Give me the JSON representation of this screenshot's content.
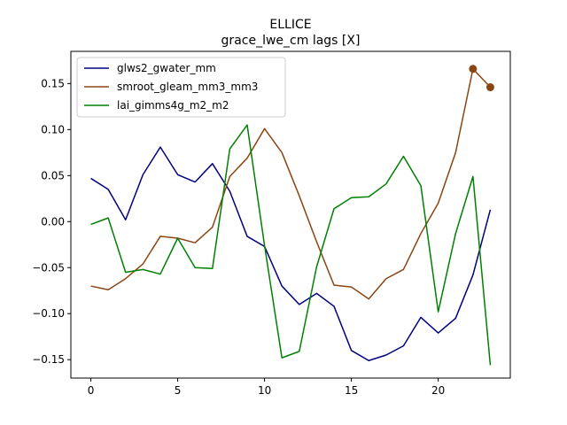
{
  "chart_data": {
    "type": "line",
    "title": "ELLICE",
    "subtitle": "grace_lwe_cm lags [X]",
    "xlabel": "",
    "ylabel": "",
    "xlim": [
      -1.15,
      24.15
    ],
    "ylim": [
      -0.17,
      0.185
    ],
    "xticks": [
      0,
      5,
      10,
      15,
      20
    ],
    "yticks": [
      -0.15,
      -0.1,
      -0.05,
      0.0,
      0.05,
      0.1,
      0.15
    ],
    "ytick_labels": [
      "−0.15",
      "−0.10",
      "−0.05",
      "0.00",
      "0.05",
      "0.10",
      "0.15"
    ],
    "legend_position": "upper-left",
    "grid": false,
    "x": [
      0,
      1,
      2,
      3,
      4,
      5,
      6,
      7,
      8,
      9,
      10,
      11,
      12,
      13,
      14,
      15,
      16,
      17,
      18,
      19,
      20,
      21,
      22,
      23
    ],
    "series": [
      {
        "name": "glws2_gwater_mm",
        "color": "#000080",
        "values": [
          0.047,
          0.035,
          0.002,
          0.051,
          0.081,
          0.051,
          0.043,
          0.063,
          0.033,
          -0.016,
          -0.027,
          -0.07,
          -0.09,
          -0.078,
          -0.092,
          -0.14,
          -0.151,
          -0.145,
          -0.135,
          -0.104,
          -0.121,
          -0.105,
          -0.058,
          0.013
        ]
      },
      {
        "name": "smroot_gleam_mm3_mm3",
        "color": "#8B4513",
        "values": [
          -0.07,
          -0.074,
          -0.062,
          -0.046,
          -0.016,
          -0.018,
          -0.023,
          -0.006,
          0.049,
          0.069,
          0.101,
          0.075,
          0.028,
          -0.022,
          -0.069,
          -0.071,
          -0.084,
          -0.062,
          -0.052,
          -0.013,
          0.02,
          0.075,
          0.166,
          0.146
        ],
        "markers": [
          {
            "x": 22,
            "y": 0.166
          },
          {
            "x": 23,
            "y": 0.146
          }
        ]
      },
      {
        "name": "lai_gimms4g_m2_m2",
        "color": "#008000",
        "values": [
          -0.003,
          0.004,
          -0.055,
          -0.052,
          -0.057,
          -0.018,
          -0.05,
          -0.051,
          0.079,
          0.105,
          -0.026,
          -0.148,
          -0.141,
          -0.049,
          0.014,
          0.026,
          0.027,
          0.041,
          0.071,
          0.039,
          -0.098,
          -0.013,
          0.049,
          -0.156
        ]
      }
    ]
  }
}
